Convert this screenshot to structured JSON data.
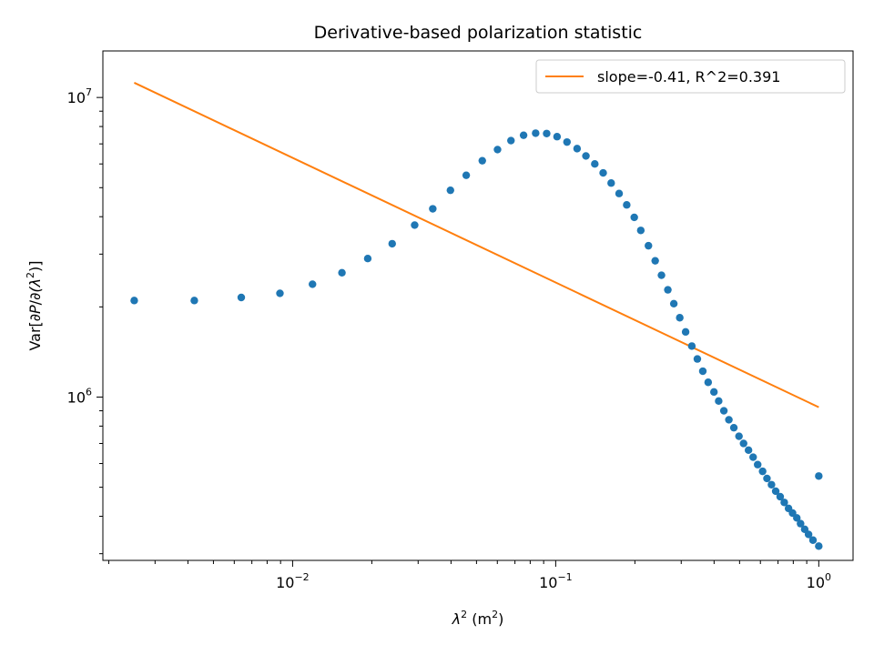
{
  "chart_data": {
    "type": "scatter",
    "title": "Derivative-based polarization statistic",
    "xlabel": {
      "symbol": "λ",
      "sup": "2",
      "unit_open": " (m",
      "unit_sup": "2",
      "unit_close": ")"
    },
    "ylabel": {
      "prefix": "Var[",
      "italic1": "∂P",
      "mid1": "/",
      "italic2": "∂(λ",
      "sup": "2",
      "suffix": ")]"
    },
    "x_scale": "log",
    "y_scale": "log",
    "xlim": [
      0.0019,
      1.35
    ],
    "ylim": [
      285000,
      14300000
    ],
    "x_ticks": [
      {
        "value": 0.01,
        "base": "10",
        "exp": "−2"
      },
      {
        "value": 0.1,
        "base": "10",
        "exp": "−1"
      },
      {
        "value": 1,
        "base": "10",
        "exp": "0"
      }
    ],
    "y_ticks": [
      {
        "value": 1000000,
        "base": "10",
        "exp": "6"
      },
      {
        "value": 10000000,
        "base": "10",
        "exp": "7"
      }
    ],
    "grid": false,
    "legend_position": "top-right",
    "colors": {
      "points": "#1f77b4",
      "fit": "#ff7f0e"
    },
    "series": [
      {
        "type": "scatter",
        "x": [
          0.0025,
          0.00423,
          0.00638,
          0.00895,
          0.0119,
          0.0154,
          0.0193,
          0.0239,
          0.0291,
          0.0341,
          0.0398,
          0.0457,
          0.0526,
          0.0601,
          0.0676,
          0.0755,
          0.0839,
          0.0924,
          0.1012,
          0.1104,
          0.1206,
          0.1303,
          0.1408,
          0.1515,
          0.1625,
          0.1742,
          0.1862,
          0.1989,
          0.2106,
          0.2252,
          0.2389,
          0.2524,
          0.2669,
          0.2812,
          0.2962,
          0.3118,
          0.3292,
          0.3455,
          0.3624,
          0.3798,
          0.3995,
          0.4164,
          0.4357,
          0.4553,
          0.4755,
          0.4974,
          0.5178,
          0.5407,
          0.563,
          0.5858,
          0.6117,
          0.6354,
          0.6611,
          0.686,
          0.7134,
          0.7393,
          0.7675,
          0.795,
          0.8253,
          0.8526,
          0.8841,
          0.9145,
          0.9506,
          1.0,
          1.0
        ],
        "y": [
          2100000,
          2100000,
          2150000,
          2220000,
          2380000,
          2600000,
          2900000,
          3250000,
          3750000,
          4250000,
          4900000,
          5500000,
          6150000,
          6700000,
          7180000,
          7480000,
          7600000,
          7580000,
          7400000,
          7100000,
          6750000,
          6380000,
          6000000,
          5600000,
          5180000,
          4780000,
          4380000,
          3980000,
          3600000,
          3200000,
          2850000,
          2550000,
          2280000,
          2050000,
          1840000,
          1650000,
          1480000,
          1340000,
          1220000,
          1120000,
          1040000,
          970000,
          900000,
          840000,
          790000,
          740000,
          700000,
          665000,
          630000,
          595000,
          565000,
          535000,
          510000,
          485000,
          465000,
          445000,
          425000,
          410000,
          395000,
          378000,
          362000,
          348000,
          333000,
          318000,
          545000
        ]
      },
      {
        "type": "line",
        "name": "slope=-0.41, R^2=0.391",
        "x": [
          0.0025,
          1.0
        ],
        "y": [
          11200000,
          925000
        ]
      }
    ]
  }
}
